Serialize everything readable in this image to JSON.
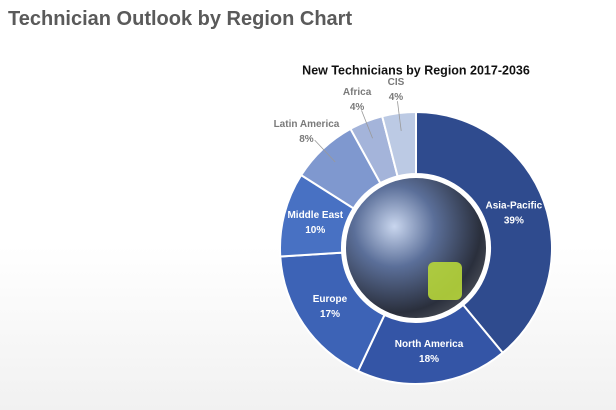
{
  "heading": "Technician Outlook by Region Chart",
  "chart_data": {
    "type": "donut",
    "title": "New Technicians by Region 2017-2036",
    "categories": [
      "Asia-Pacific",
      "North America",
      "Europe",
      "Middle East",
      "Latin America",
      "Africa",
      "CIS"
    ],
    "values": [
      39,
      18,
      17,
      10,
      8,
      4,
      4
    ],
    "value_labels": [
      "39%",
      "18%",
      "17%",
      "10%",
      "8%",
      "4%",
      "4%"
    ],
    "colors": [
      "#2f4b8e",
      "#3455a6",
      "#3d63b6",
      "#4871c3",
      "#7f98cf",
      "#a4b4da",
      "#bccae4"
    ]
  }
}
